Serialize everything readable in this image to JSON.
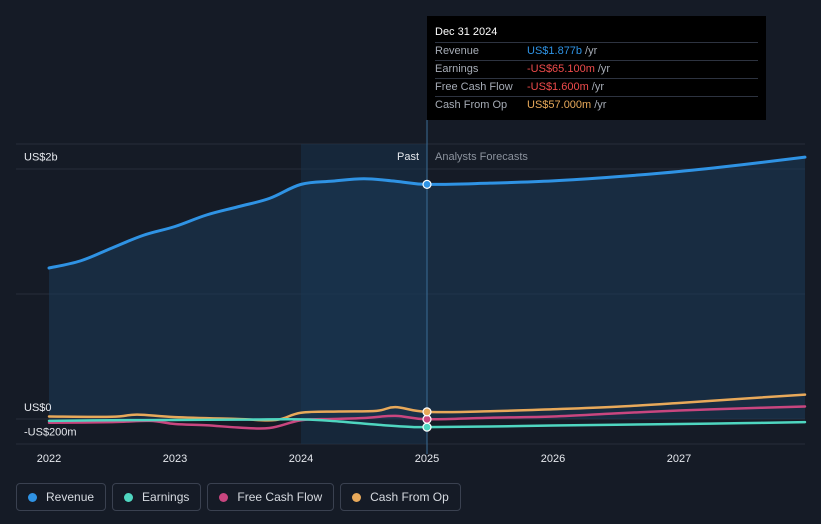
{
  "chart_data": {
    "type": "line",
    "y_axis_labels": [
      "US$2b",
      "US$0",
      "-US$200m"
    ],
    "x_tick_labels": [
      "2022",
      "2023",
      "2024",
      "2025",
      "2026",
      "2027"
    ],
    "past_label": "Past",
    "forecast_label": "Analysts Forecasts",
    "ylim": [
      -200,
      2200
    ],
    "series": [
      {
        "name": "Revenue",
        "color": "#2f93e4",
        "x": [
          2022.0,
          2022.25,
          2022.5,
          2022.75,
          2023.0,
          2023.25,
          2023.5,
          2023.75,
          2024.0,
          2024.25,
          2024.5,
          2024.75,
          2025.0,
          2025.5,
          2026.0,
          2026.5,
          2027.0,
          2027.5,
          2028.0
        ],
        "values": [
          1208,
          1265,
          1368,
          1470,
          1540,
          1632,
          1698,
          1765,
          1877,
          1903,
          1922,
          1902,
          1877,
          1887,
          1905,
          1938,
          1980,
          2034,
          2095
        ]
      },
      {
        "name": "Earnings",
        "color": "#4fd6c0",
        "x": [
          2022.0,
          2022.5,
          2023.0,
          2023.5,
          2024.0,
          2024.3,
          2024.6,
          2024.85,
          2025.0,
          2025.5,
          2026.0,
          2026.5,
          2027.0,
          2027.5,
          2028.0
        ],
        "values": [
          -15,
          -10,
          -8,
          -5,
          -3,
          -20,
          -45,
          -62,
          -65,
          -60,
          -52,
          -46,
          -40,
          -33,
          -25
        ]
      },
      {
        "name": "Free Cash Flow",
        "color": "#c9467f",
        "x": [
          2022.0,
          2022.5,
          2022.8,
          2023.0,
          2023.25,
          2023.5,
          2023.75,
          2024.0,
          2024.25,
          2024.5,
          2024.75,
          2025.0,
          2025.5,
          2026.0,
          2026.5,
          2027.0,
          2027.5,
          2028.0
        ],
        "values": [
          -30,
          -25,
          -15,
          -40,
          -50,
          -68,
          -72,
          -10,
          0,
          8,
          25,
          -2,
          10,
          20,
          45,
          68,
          85,
          100
        ]
      },
      {
        "name": "Cash From Op",
        "color": "#e8a95a",
        "x": [
          2022.0,
          2022.5,
          2022.7,
          2023.0,
          2023.5,
          2023.8,
          2024.0,
          2024.3,
          2024.6,
          2024.75,
          2025.0,
          2025.5,
          2026.0,
          2026.5,
          2027.0,
          2027.5,
          2028.0
        ],
        "values": [
          20,
          18,
          35,
          15,
          0,
          -8,
          50,
          60,
          65,
          95,
          57,
          62,
          78,
          98,
          128,
          162,
          195
        ]
      }
    ]
  },
  "tooltip": {
    "date": "Dec 31 2024",
    "rows": [
      {
        "label": "Revenue",
        "value": "US$1.877b",
        "unit": "/yr",
        "color": "#2f93e4"
      },
      {
        "label": "Earnings",
        "value": "-US$65.100m",
        "unit": "/yr",
        "color": "#ef4b4b"
      },
      {
        "label": "Free Cash Flow",
        "value": "-US$1.600m",
        "unit": "/yr",
        "color": "#ef4b4b"
      },
      {
        "label": "Cash From Op",
        "value": "US$57.000m",
        "unit": "/yr",
        "color": "#e8a95a"
      }
    ]
  },
  "legend": [
    {
      "label": "Revenue",
      "color": "#2f93e4"
    },
    {
      "label": "Earnings",
      "color": "#4fd6c0"
    },
    {
      "label": "Free Cash Flow",
      "color": "#c9467f"
    },
    {
      "label": "Cash From Op",
      "color": "#e8a95a"
    }
  ]
}
